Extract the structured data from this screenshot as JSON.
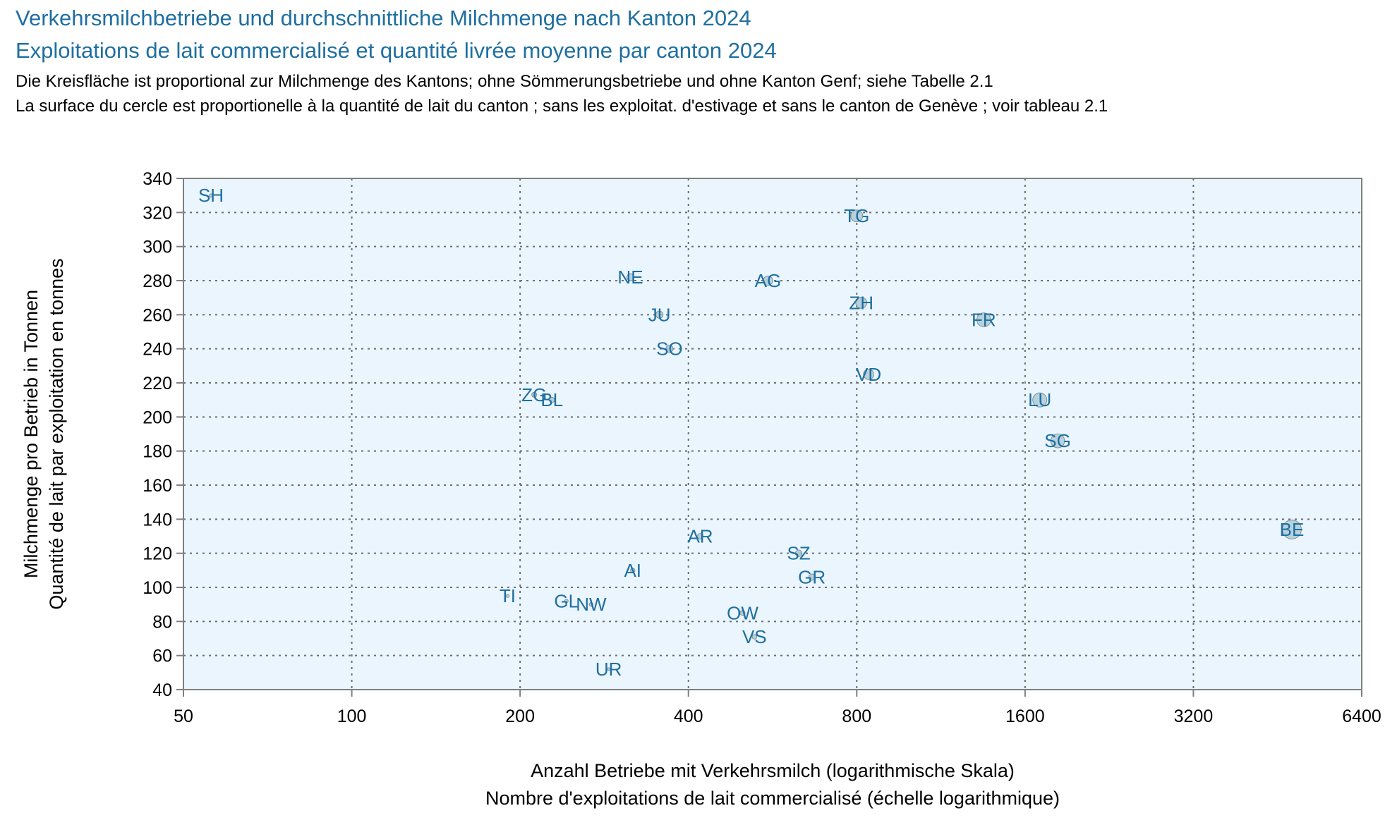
{
  "title_de": "Verkehrsmilchbetriebe und durchschnittliche Milchmenge nach Kanton 2024",
  "title_fr": "Exploitations de lait commercialisé et quantité livrée moyenne par canton 2024",
  "subtitle_de": "Die Kreisfläche ist proportional zur Milchmenge des Kantons; ohne Sömmerungsbetriebe und ohne Kanton Genf; siehe Tabelle 2.1",
  "subtitle_fr": "La surface du cercle est proportionelle à la quantité de lait du canton ; sans les exploitat. d'estivage et sans le canton de Genève ; voir tableau 2.1",
  "colors": {
    "title": "#1f6fa0",
    "bubble_fill": "#a9c8d4",
    "bubble_stroke": "#7e8f96",
    "plot_bg": "#eaf5fd",
    "label": "#1f6fa0"
  },
  "chart_data": {
    "type": "bubble",
    "xlabel_de": "Anzahl Betriebe mit Verkehrsmilch (logarithmische Skala)",
    "xlabel_fr": "Nombre d'exploitations de lait commercialisé (échelle logarithmique)",
    "ylabel_de": "Milchmenge pro Betrieb in Tonnen",
    "ylabel_fr": "Quantité de lait par exploitation en tonnes",
    "x_scale": "log2",
    "xlim": [
      50,
      6400
    ],
    "ylim": [
      40,
      340
    ],
    "x_ticks": [
      50,
      100,
      200,
      400,
      800,
      1600,
      3200,
      6400
    ],
    "x_tick_labels": [
      "50",
      "100",
      "200",
      "400",
      "800",
      "1600",
      "3200",
      "6400"
    ],
    "y_ticks": [
      40,
      60,
      80,
      100,
      120,
      140,
      160,
      180,
      200,
      220,
      240,
      260,
      280,
      300,
      320,
      340
    ],
    "y_tick_labels": [
      "40",
      "60",
      "80",
      "100",
      "120",
      "140",
      "160",
      "180",
      "200",
      "220",
      "240",
      "260",
      "280",
      "300",
      "320",
      "340"
    ],
    "grid": true,
    "bubble_size": "area proportional to x × y (total milk of canton)",
    "points": [
      {
        "label": "SH",
        "x": 56,
        "y": 330
      },
      {
        "label": "TG",
        "x": 800,
        "y": 318
      },
      {
        "label": "NE",
        "x": 315,
        "y": 282
      },
      {
        "label": "AG",
        "x": 555,
        "y": 280
      },
      {
        "label": "ZH",
        "x": 815,
        "y": 267
      },
      {
        "label": "FR",
        "x": 1350,
        "y": 257
      },
      {
        "label": "JU",
        "x": 355,
        "y": 260
      },
      {
        "label": "SO",
        "x": 370,
        "y": 240
      },
      {
        "label": "VD",
        "x": 840,
        "y": 225
      },
      {
        "label": "ZG",
        "x": 212,
        "y": 213
      },
      {
        "label": "BL",
        "x": 228,
        "y": 210
      },
      {
        "label": "LU",
        "x": 1700,
        "y": 210
      },
      {
        "label": "SG",
        "x": 1830,
        "y": 186
      },
      {
        "label": "BE",
        "x": 4800,
        "y": 134
      },
      {
        "label": "AR",
        "x": 420,
        "y": 130
      },
      {
        "label": "SZ",
        "x": 630,
        "y": 120
      },
      {
        "label": "GR",
        "x": 665,
        "y": 106
      },
      {
        "label": "AI",
        "x": 318,
        "y": 110
      },
      {
        "label": "TI",
        "x": 190,
        "y": 95
      },
      {
        "label": "GL",
        "x": 242,
        "y": 92
      },
      {
        "label": "NW",
        "x": 268,
        "y": 90
      },
      {
        "label": "OW",
        "x": 500,
        "y": 85
      },
      {
        "label": "VS",
        "x": 525,
        "y": 71
      },
      {
        "label": "UR",
        "x": 288,
        "y": 52
      }
    ]
  }
}
